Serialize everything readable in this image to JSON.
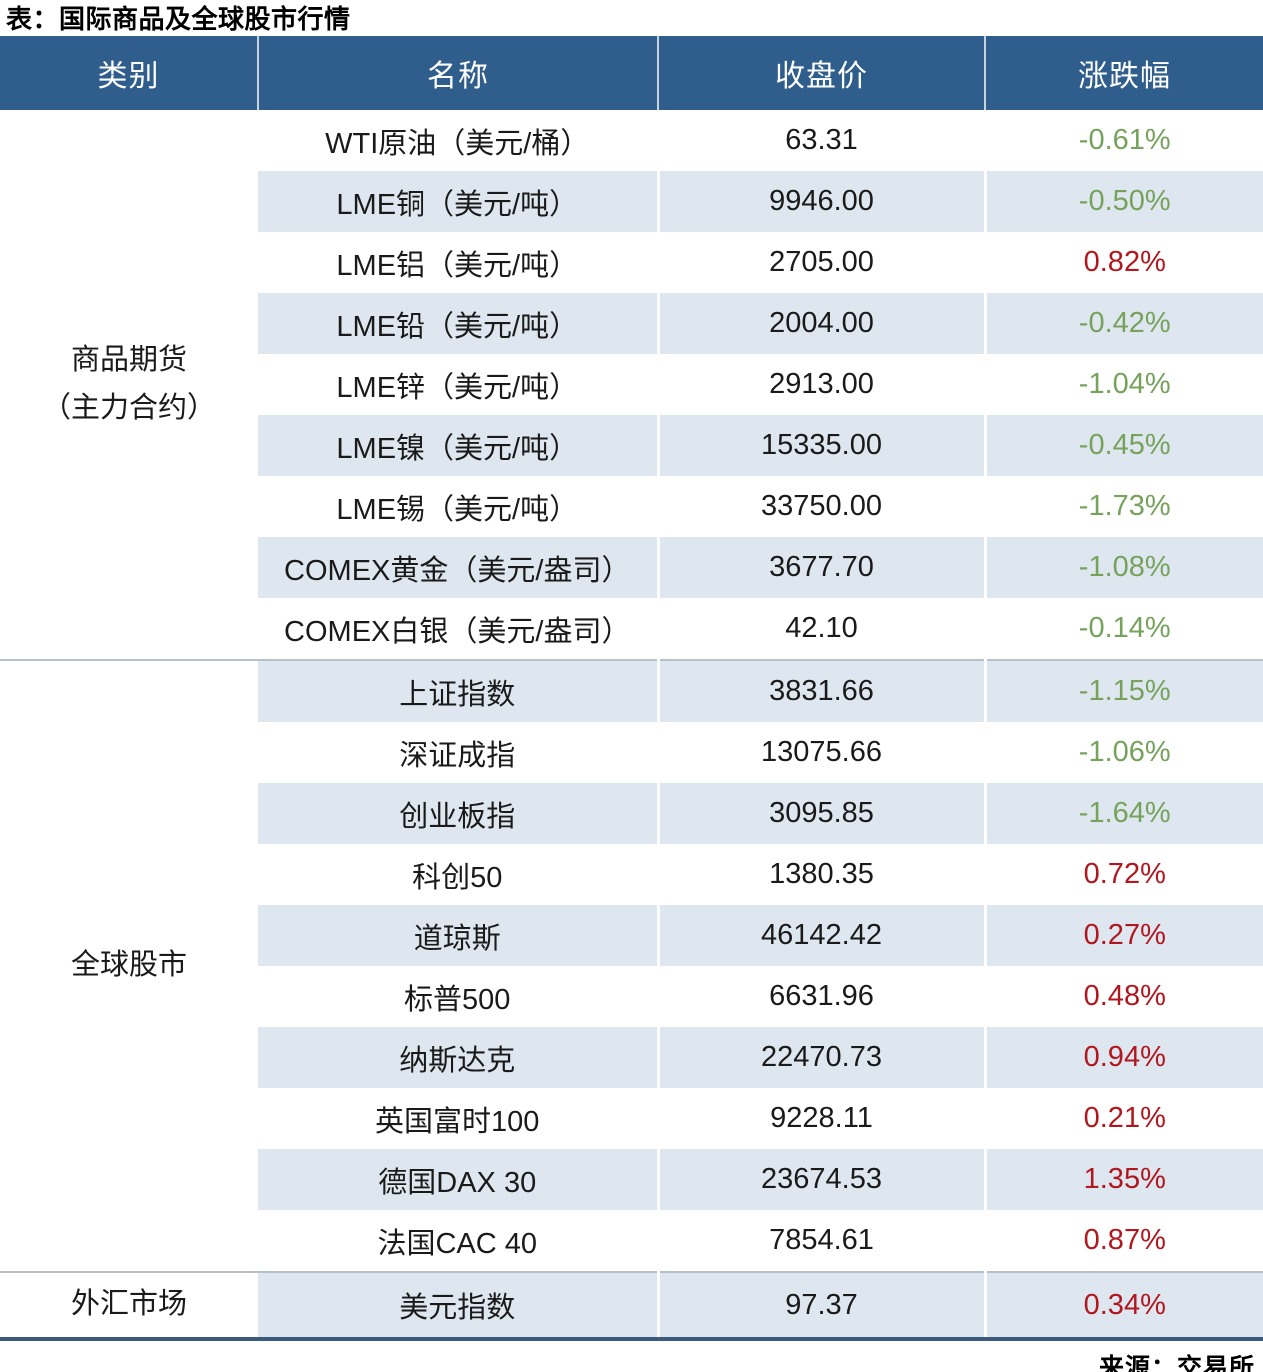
{
  "title": "表：国际商品及全球股市行情",
  "source_label": "来源：交易所",
  "colors": {
    "header_bg": "#2f5d8c",
    "header_text": "#ffffff",
    "stripe_bg": "#dee7f0",
    "up_red": "#b1171f",
    "down_green": "#76a25c",
    "body_text": "#1a1a1a",
    "bottom_border": "#3b5a7c",
    "section_divider": "#b7c1cc",
    "header_divider": "#c9d3dd"
  },
  "chart_data": {
    "type": "table",
    "title": "表：国际商品及全球股市行情",
    "columns": [
      "类别",
      "名称",
      "收盘价",
      "涨跌幅"
    ],
    "source": "来源：交易所",
    "sections": [
      {
        "category": "商品期货（主力合约）",
        "category_lines": [
          "商品期货",
          "（主力合约）"
        ],
        "rows": [
          {
            "name": "WTI原油（美元/桶）",
            "close": "63.31",
            "change": "-0.61%",
            "trend": "down"
          },
          {
            "name": "LME铜（美元/吨）",
            "close": "9946.00",
            "change": "-0.50%",
            "trend": "down"
          },
          {
            "name": "LME铝（美元/吨）",
            "close": "2705.00",
            "change": "0.82%",
            "trend": "up"
          },
          {
            "name": "LME铅（美元/吨）",
            "close": "2004.00",
            "change": "-0.42%",
            "trend": "down"
          },
          {
            "name": "LME锌（美元/吨）",
            "close": "2913.00",
            "change": "-1.04%",
            "trend": "down"
          },
          {
            "name": "LME镍（美元/吨）",
            "close": "15335.00",
            "change": "-0.45%",
            "trend": "down"
          },
          {
            "name": "LME锡（美元/吨）",
            "close": "33750.00",
            "change": "-1.73%",
            "trend": "down"
          },
          {
            "name": "COMEX黄金（美元/盎司）",
            "close": "3677.70",
            "change": "-1.08%",
            "trend": "down"
          },
          {
            "name": "COMEX白银（美元/盎司）",
            "close": "42.10",
            "change": "-0.14%",
            "trend": "down"
          }
        ]
      },
      {
        "category": "全球股市",
        "category_lines": [
          "全球股市"
        ],
        "rows": [
          {
            "name": "上证指数",
            "close": "3831.66",
            "change": "-1.15%",
            "trend": "down"
          },
          {
            "name": "深证成指",
            "close": "13075.66",
            "change": "-1.06%",
            "trend": "down"
          },
          {
            "name": "创业板指",
            "close": "3095.85",
            "change": "-1.64%",
            "trend": "down"
          },
          {
            "name": "科创50",
            "close": "1380.35",
            "change": "0.72%",
            "trend": "up"
          },
          {
            "name": "道琼斯",
            "close": "46142.42",
            "change": "0.27%",
            "trend": "up"
          },
          {
            "name": "标普500",
            "close": "6631.96",
            "change": "0.48%",
            "trend": "up"
          },
          {
            "name": "纳斯达克",
            "close": "22470.73",
            "change": "0.94%",
            "trend": "up"
          },
          {
            "name": "英国富时100",
            "close": "9228.11",
            "change": "0.21%",
            "trend": "up"
          },
          {
            "name": "德国DAX 30",
            "close": "23674.53",
            "change": "1.35%",
            "trend": "up"
          },
          {
            "name": "法国CAC 40",
            "close": "7854.61",
            "change": "0.87%",
            "trend": "up"
          }
        ]
      },
      {
        "category": "外汇市场",
        "category_lines": [
          "外汇市场"
        ],
        "rows": [
          {
            "name": "美元指数",
            "close": "97.37",
            "change": "0.34%",
            "trend": "up"
          }
        ]
      }
    ]
  }
}
